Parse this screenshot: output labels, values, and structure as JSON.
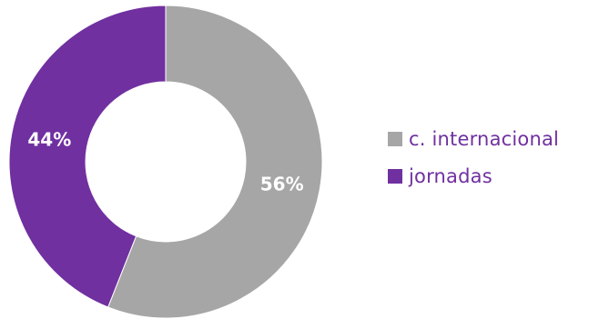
{
  "chart_data": {
    "type": "pie",
    "subtype": "donut",
    "categories": [
      "c. internacional",
      "jornadas"
    ],
    "values": [
      56,
      44
    ],
    "labels": [
      "56%",
      "44%"
    ],
    "colors": [
      "#a6a6a6",
      "#7030a0"
    ],
    "legend_position": "right"
  },
  "legend": {
    "items": [
      {
        "label": "c. internacional",
        "color": "#a6a6a6",
        "text_color": "#7030a0"
      },
      {
        "label": "jornadas",
        "color": "#7030a0",
        "text_color": "#7030a0"
      }
    ]
  }
}
